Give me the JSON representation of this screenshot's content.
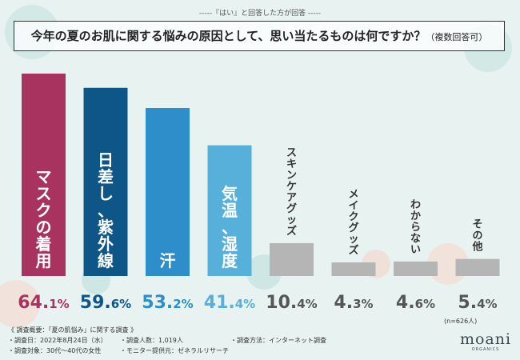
{
  "header": {
    "subtitle": "-----『はい』と回答した方が回答 -----",
    "question": "今年の夏のお肌に関する悩みの原因として、思い当たるものは何ですか？",
    "question_note": "（複数回答可）"
  },
  "chart_data": {
    "type": "bar",
    "title": "今年の夏のお肌に関する悩みの原因として、思い当たるものは何ですか？（複数回答可）",
    "categories": [
      "マスクの着用",
      "日差し、紫外線",
      "汗",
      "気温、湿度",
      "スキンケアグッズ",
      "メイクグッズ",
      "わからない",
      "その他"
    ],
    "values": [
      64.1,
      59.6,
      53.2,
      41.4,
      10.4,
      4.3,
      4.6,
      5.4
    ],
    "unit": "%",
    "ylim": [
      0,
      64.1
    ],
    "sample_size": "(n=626人)",
    "colors": [
      "#a8335f",
      "#0f5688",
      "#2d8ec9",
      "#56b0da",
      "#b5b5b5",
      "#b5b5b5",
      "#b5b5b5",
      "#b5b5b5"
    ],
    "value_colors": [
      "#a8335f",
      "#0f5688",
      "#2d8ec9",
      "#56b0da",
      "#555555",
      "#555555",
      "#555555",
      "#555555"
    ],
    "label_inside": [
      true,
      true,
      true,
      true,
      false,
      false,
      false,
      false
    ]
  },
  "footer": {
    "overview": "《 調査概要：「夏の肌悩み」に関する調査 》",
    "date": "・調査日：2022年8月24日（水）",
    "count": "・調査人数：1,019人",
    "method": "・調査方法：インターネット調査",
    "target": "・調査対象：30代〜40代の女性",
    "provider": "・モニター提供元：ゼネラルリサーチ"
  },
  "brand": {
    "name": "moani",
    "sub": "ORGANICS"
  }
}
